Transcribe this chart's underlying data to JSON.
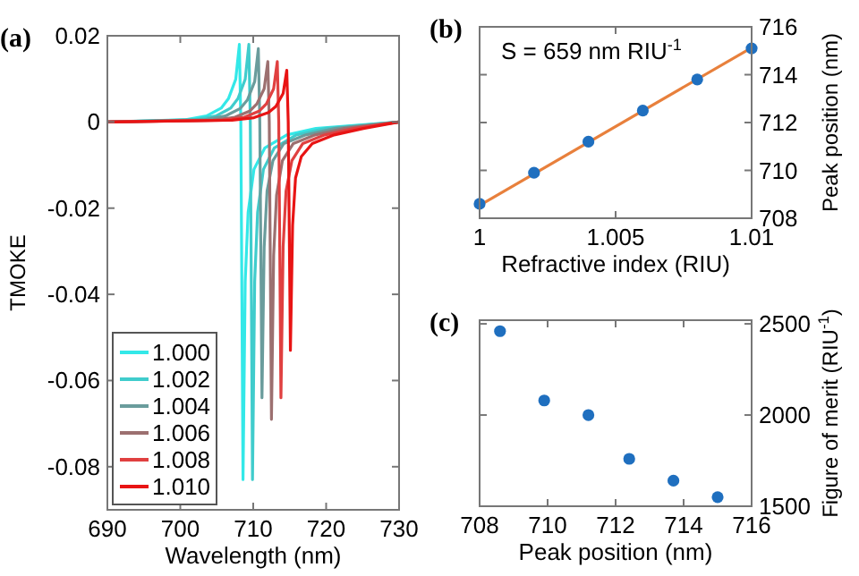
{
  "chart_data": [
    {
      "type": "line",
      "title": "(a)",
      "xlabel": "Wavelength (nm)",
      "ylabel": "TMOKE",
      "xlim": [
        690,
        730
      ],
      "ylim": [
        -0.09,
        0.02
      ],
      "xticks": [
        690,
        700,
        710,
        720,
        730
      ],
      "yticks": [
        -0.08,
        -0.06,
        -0.04,
        -0.02,
        0,
        0.02
      ],
      "legend": "bottom left",
      "line_style": "solid",
      "series": [
        {
          "name": "1.000",
          "color": "#33e8e8",
          "x": [
            690,
            700.6,
            703.6,
            705.6,
            706.6,
            707.6,
            708.1,
            708.3,
            708.6,
            708.9,
            709.3,
            710.1,
            711.6,
            714.6,
            718.6,
            730
          ],
          "values": [
            0,
            0.0005,
            0.0014,
            0.0032,
            0.0054,
            0.0099,
            0.018,
            0,
            -0.083,
            -0.037,
            -0.021,
            -0.011,
            -0.006,
            -0.003,
            -0.0015,
            0
          ]
        },
        {
          "name": "1.002",
          "color": "#40cccc",
          "x": [
            690,
            701.9,
            704.9,
            706.9,
            707.9,
            708.9,
            709.4,
            709.6,
            709.9,
            710.2,
            710.6,
            711.4,
            712.9,
            715.9,
            719.9,
            730
          ],
          "values": [
            0,
            0.0005,
            0.0014,
            0.0032,
            0.0054,
            0.0099,
            0.018,
            0,
            -0.083,
            -0.037,
            -0.021,
            -0.011,
            -0.006,
            -0.003,
            -0.0015,
            0
          ]
        },
        {
          "name": "1.004",
          "color": "#6a9c9c",
          "x": [
            690,
            703.2,
            706.2,
            708.2,
            709.2,
            710.2,
            710.7,
            710.9,
            711.2,
            711.5,
            711.9,
            712.7,
            714.2,
            717.2,
            721.2,
            730
          ],
          "values": [
            0,
            0.0005,
            0.0014,
            0.0031,
            0.0051,
            0.0094,
            0.017,
            0,
            -0.064,
            -0.029,
            -0.016,
            -0.009,
            -0.005,
            -0.003,
            -0.0015,
            0
          ]
        },
        {
          "name": "1.006",
          "color": "#9c7070",
          "x": [
            690,
            704.5,
            707.5,
            709.5,
            710.5,
            711.5,
            712,
            712.2,
            712.5,
            712.8,
            713.2,
            714,
            715.5,
            718.5,
            722.5,
            730
          ],
          "values": [
            0,
            0.0004,
            0.0011,
            0.0025,
            0.0042,
            0.0077,
            0.014,
            0,
            -0.069,
            -0.031,
            -0.017,
            -0.009,
            -0.005,
            -0.003,
            -0.0015,
            0
          ]
        },
        {
          "name": "1.008",
          "color": "#e04040",
          "x": [
            690,
            705.8,
            708.8,
            710.8,
            711.8,
            712.8,
            713.3,
            713.5,
            713.8,
            714.1,
            714.5,
            715.3,
            716.8,
            719.8,
            723.8,
            730
          ],
          "values": [
            0,
            0.0004,
            0.0011,
            0.0025,
            0.0042,
            0.0077,
            0.014,
            0,
            -0.064,
            -0.029,
            -0.016,
            -0.009,
            -0.005,
            -0.003,
            -0.0015,
            0
          ]
        },
        {
          "name": "1.010",
          "color": "#e81414",
          "x": [
            690,
            707.1,
            710.1,
            712.1,
            713.1,
            714.1,
            714.6,
            714.8,
            715.1,
            715.4,
            715.8,
            716.6,
            718.1,
            721.1,
            725.1,
            730
          ],
          "values": [
            0,
            0.0004,
            0.001,
            0.0022,
            0.0036,
            0.0066,
            0.012,
            0,
            -0.053,
            -0.024,
            -0.013,
            -0.008,
            -0.005,
            -0.003,
            -0.0015,
            0
          ]
        }
      ]
    },
    {
      "type": "scatter",
      "title": "(b)",
      "xlabel": "Refractive index (RIU)",
      "ylabel": "Peak position (nm)",
      "xlim": [
        1,
        1.01
      ],
      "ylim": [
        708,
        716
      ],
      "xticks": [
        1,
        1.005,
        1.01
      ],
      "yticks": [
        708,
        710,
        712,
        714,
        716
      ],
      "marker": "circle",
      "annotations": [
        "S = 659 nm RIU$^{-1}$"
      ],
      "series": [
        {
          "type": "line",
          "marker": "none",
          "color": "#e8803c",
          "x": [
            1,
            1.01
          ],
          "values": [
            708.54,
            715.13
          ]
        },
        {
          "color": "#1f6fbf",
          "x": [
            1,
            1.002,
            1.004,
            1.006,
            1.008,
            1.01
          ],
          "values": [
            708.6,
            709.9,
            711.2,
            712.5,
            713.8,
            715.1
          ]
        }
      ]
    },
    {
      "type": "scatter",
      "title": "(c)",
      "xlabel": "Peak position (nm)",
      "ylabel": "Figure of merit (RIU$^{-1}$)",
      "xlim": [
        708,
        716
      ],
      "ylim": [
        1500,
        2520
      ],
      "xticks": [
        708,
        710,
        712,
        714,
        716
      ],
      "yticks": [
        1500,
        2000,
        2500
      ],
      "marker": "circle",
      "series": [
        {
          "color": "#1f6fbf",
          "x": [
            708.6,
            709.9,
            711.2,
            712.4,
            713.7,
            715.0
          ],
          "values": [
            2460,
            2080,
            2000,
            1760,
            1640,
            1550
          ]
        }
      ]
    }
  ]
}
